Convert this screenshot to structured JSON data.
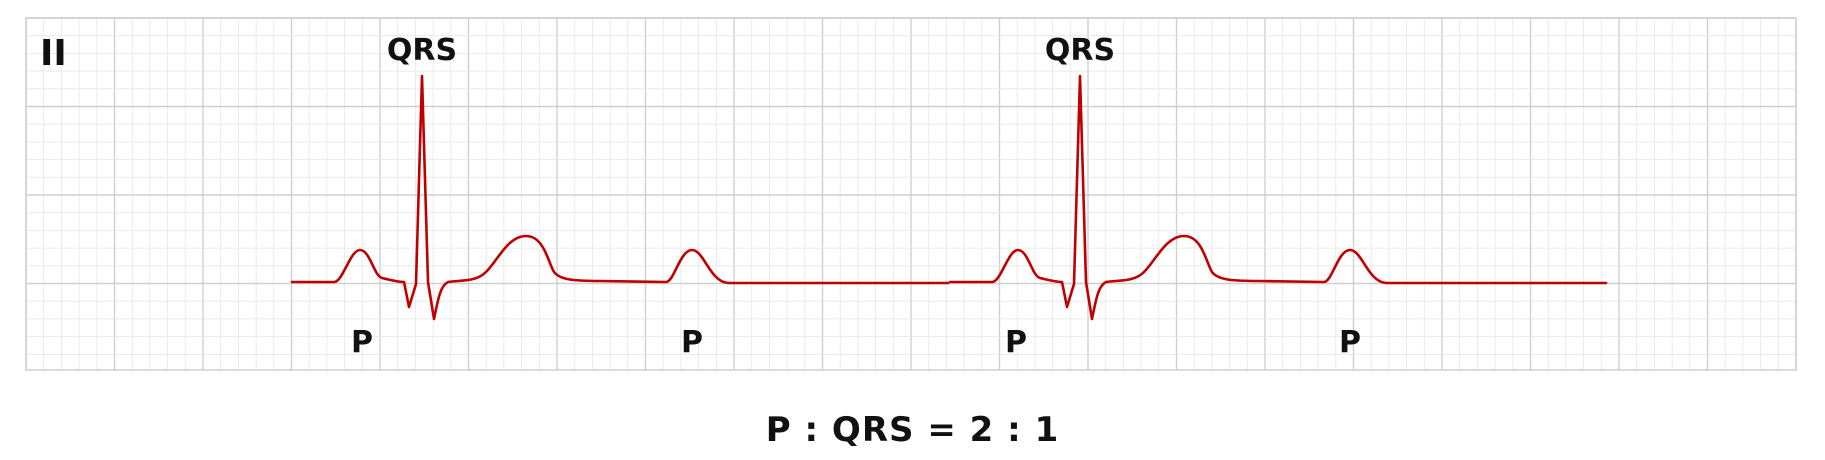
{
  "lead_label": "II",
  "labels": {
    "qrs": [
      "QRS",
      "QRS"
    ],
    "p": [
      "P",
      "P",
      "P",
      "P"
    ]
  },
  "caption": "P : QRS = 2 : 1",
  "colors": {
    "trace": "#c00000",
    "grid_minor": "#e6e6e6",
    "grid_major": "#cfcfcf",
    "text": "#111111"
  }
}
